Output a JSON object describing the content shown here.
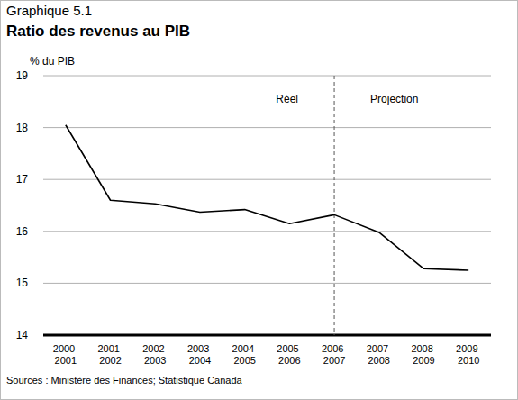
{
  "chart_data": {
    "type": "line",
    "title": "Graphique 5.1",
    "subtitle": "Ratio des revenus au PIB",
    "y_label": "% du PIB",
    "source": "Sources : Ministère des Finances; Statistique Canada",
    "annotations": [
      {
        "text": "Réel",
        "x": "2006-2007"
      },
      {
        "text": "Projection",
        "x": "2006-2007"
      }
    ],
    "categories": [
      "2000-2001",
      "2001-2002",
      "2002-2003",
      "2003-2004",
      "2004-2005",
      "2005-2006",
      "2006-2007",
      "2007-2008",
      "2008-2009",
      "2009-2010"
    ],
    "values": [
      18.05,
      16.6,
      16.53,
      16.37,
      16.42,
      16.15,
      16.32,
      15.98,
      15.28,
      15.25
    ],
    "color": "#000000",
    "ylim": [
      14,
      19
    ],
    "yticks": [
      14,
      15,
      16,
      17,
      18,
      19
    ],
    "grid": true
  }
}
